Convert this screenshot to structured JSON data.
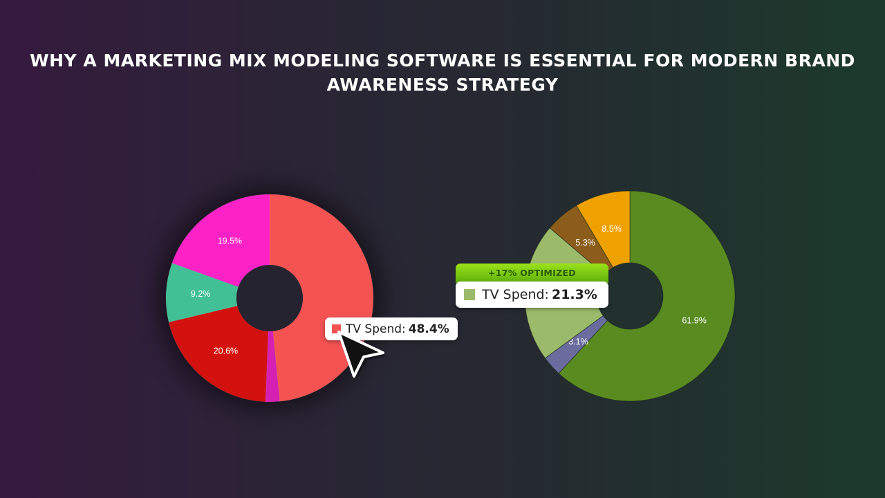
{
  "title": {
    "line1": "WHY A MARKETING MIX MODELING SOFTWARE IS ESSENTIAL FOR MODERN BRAND",
    "line2": "AWARENESS STRATEGY"
  },
  "chart_data": [
    {
      "type": "pie",
      "variant": "donut",
      "slices": [
        {
          "label": "TV Spend",
          "value": 48.4,
          "label_text": "",
          "color": "#f45352"
        },
        {
          "label": "",
          "value": 2.2,
          "label_text": "",
          "color": "#d61fb3"
        },
        {
          "label": "",
          "value": 20.6,
          "label_text": "20.6%",
          "color": "#d3110f"
        },
        {
          "label": "",
          "value": 9.2,
          "label_text": "9.2%",
          "color": "#42c095"
        },
        {
          "label": "",
          "value": 19.5,
          "label_text": "19.5%",
          "color": "#fc22c5"
        }
      ],
      "tooltip": {
        "label": "TV Spend:",
        "value": "48.4%",
        "color": "#f45352"
      }
    },
    {
      "type": "pie",
      "variant": "donut",
      "slices": [
        {
          "label": "",
          "value": 61.9,
          "label_text": "61.9%",
          "color": "#5a8b21"
        },
        {
          "label": "",
          "value": 3.1,
          "label_text": "3.1%",
          "color": "#6a6c9e"
        },
        {
          "label": "TV Spend",
          "value": 21.3,
          "label_text": "",
          "color": "#9cbb6a"
        },
        {
          "label": "",
          "value": 5.3,
          "label_text": "5.3%",
          "color": "#8c5d1a"
        },
        {
          "label": "",
          "value": 8.5,
          "label_text": "8.5%",
          "color": "#f0a102"
        }
      ],
      "tooltip": {
        "banner": "+17% OPTIMIZED",
        "label": "TV Spend:",
        "value": "21.3%",
        "color": "#9cbb6a"
      }
    }
  ],
  "cursor_icon": "mouse-pointer-icon"
}
